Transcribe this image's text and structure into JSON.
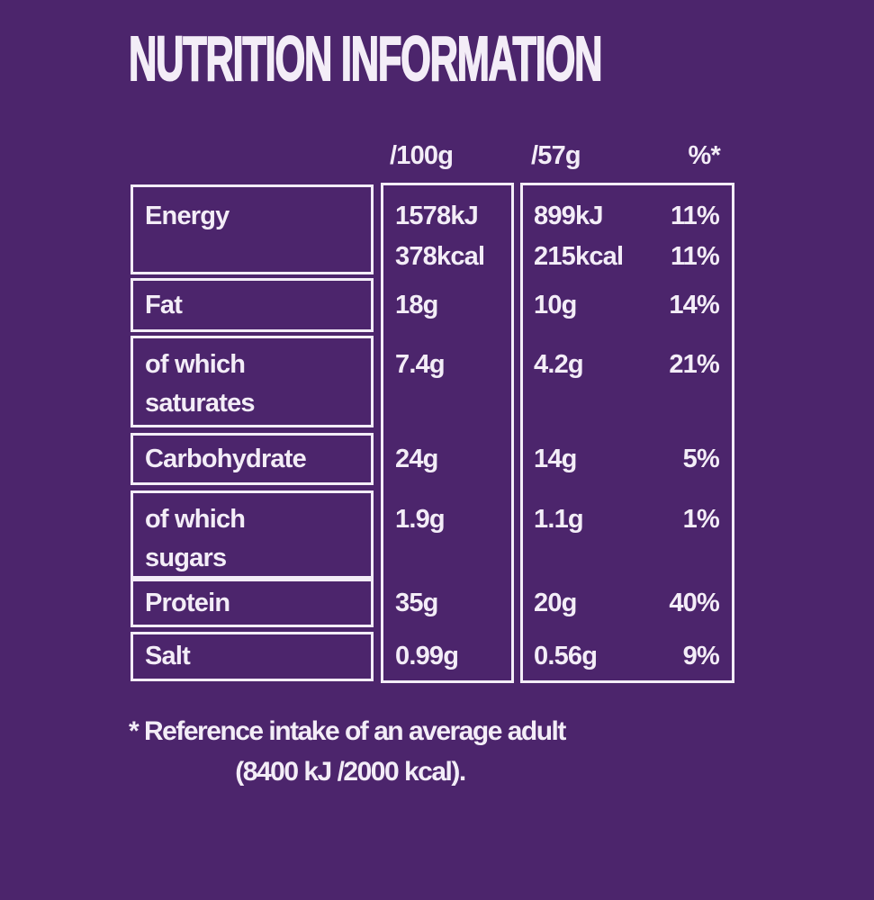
{
  "page": {
    "title": "NUTRITION INFORMATION",
    "background_color": "#4C256C",
    "text_color": "#F3EDF7"
  },
  "table": {
    "headers": {
      "per_100g": "/100g",
      "per_serving": "/57g",
      "reference_intake": "%*"
    },
    "rows": [
      {
        "name": "energy",
        "label_lines": [
          "Energy"
        ],
        "per_100g": [
          "1578kJ",
          "378kcal"
        ],
        "per_57g": [
          "899kJ",
          "215kcal"
        ],
        "percent": [
          "11%",
          "11%"
        ]
      },
      {
        "name": "fat",
        "label_lines": [
          "Fat"
        ],
        "per_100g": [
          "18g"
        ],
        "per_57g": [
          "10g"
        ],
        "percent": [
          "14%"
        ]
      },
      {
        "name": "of-which-saturates",
        "label_lines": [
          "of which",
          "saturates"
        ],
        "per_100g": [
          "7.4g"
        ],
        "per_57g": [
          "4.2g"
        ],
        "percent": [
          "21%"
        ]
      },
      {
        "name": "carbohydrate",
        "label_lines": [
          "Carbohydrate"
        ],
        "per_100g": [
          "24g"
        ],
        "per_57g": [
          "14g"
        ],
        "percent": [
          "5%"
        ]
      },
      {
        "name": "of-which-sugars",
        "label_lines": [
          "of which",
          "sugars"
        ],
        "per_100g": [
          "1.9g"
        ],
        "per_57g": [
          "1.1g"
        ],
        "percent": [
          "1%"
        ]
      },
      {
        "name": "protein",
        "label_lines": [
          "Protein"
        ],
        "per_100g": [
          "35g"
        ],
        "per_57g": [
          "20g"
        ],
        "percent": [
          "40%"
        ]
      },
      {
        "name": "salt",
        "label_lines": [
          "Salt"
        ],
        "per_100g": [
          "0.99g"
        ],
        "per_57g": [
          "0.56g"
        ],
        "percent": [
          "9%"
        ]
      }
    ]
  },
  "footnote": {
    "line1": "* Reference intake of an average adult",
    "line2": "(8400 kJ /2000 kcal)."
  }
}
